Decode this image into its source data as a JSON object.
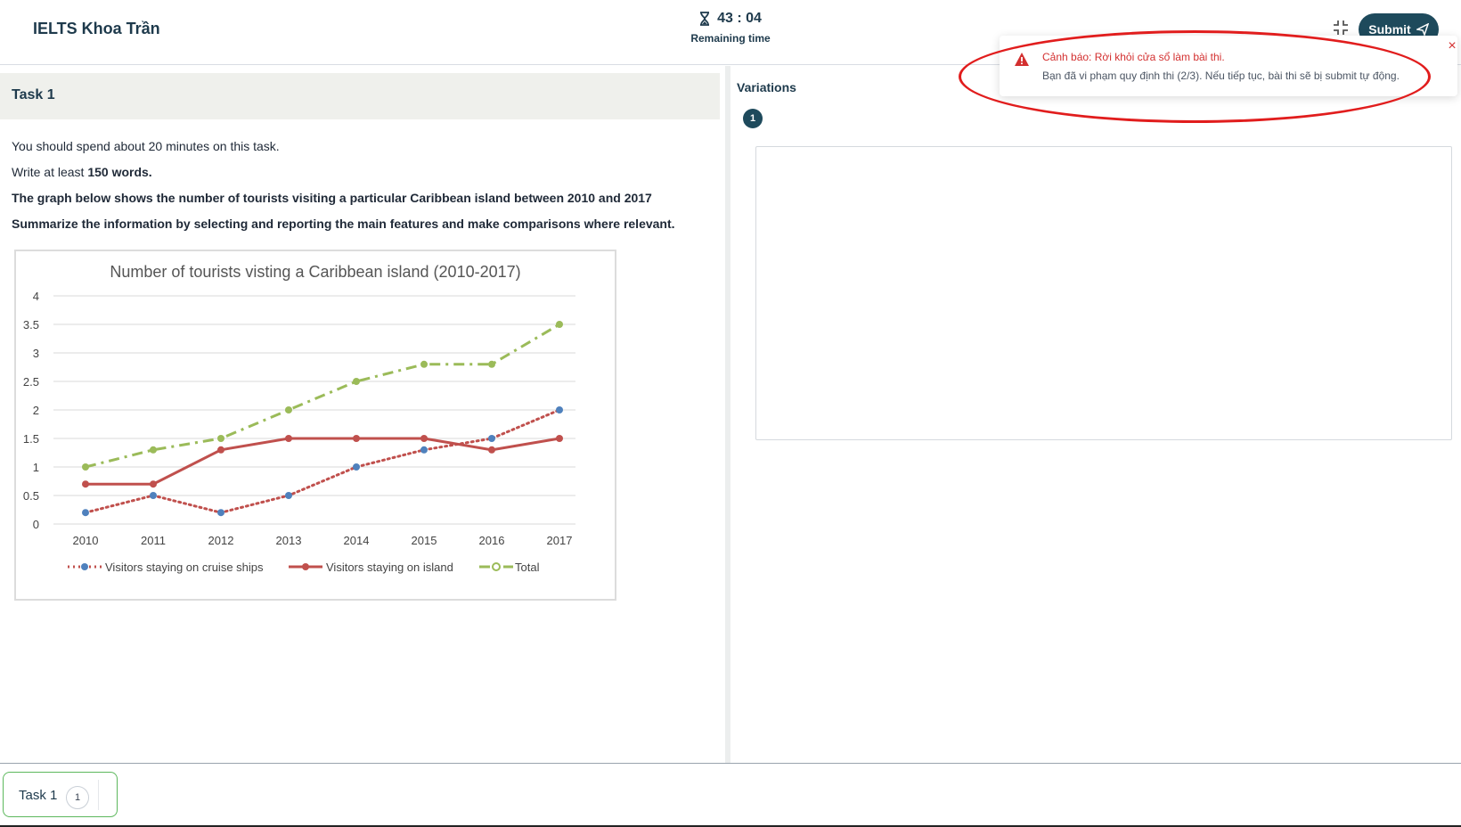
{
  "header": {
    "brand": "IELTS Khoa Trần",
    "timer": "43 : 04",
    "timer_label": "Remaining time",
    "submit_label": "Submit",
    "icons": {
      "timer": "hourglass-icon",
      "collapse": "collapse-icon",
      "submit": "send-icon"
    }
  },
  "task": {
    "title": "Task 1",
    "line1": "You should spend about 20 minutes on this task.",
    "line2_prefix": "Write at least ",
    "line2_bold": "150 words.",
    "line3": "The graph below shows the number of tourists visiting a particular Caribbean island between 2010 and 2017",
    "line4": "Summarize the information by selecting and reporting the main features and make comparisons where relevant."
  },
  "variations": {
    "label": "Variations",
    "current": "1"
  },
  "toast": {
    "title": "Cảnh báo: Rời khỏi cửa sổ làm bài thi.",
    "message": "Bạn đã vi phạm quy định thi (2/3). Nếu tiếp tục, bài thi sẽ bị submit tự động.",
    "close": "×",
    "color": "#d32f2f"
  },
  "footer": {
    "task_label": "Task 1",
    "task_count": "1"
  },
  "chart_data": {
    "type": "line",
    "title": "Number of tourists visting a Caribbean island (2010-2017)",
    "xlabel": "",
    "ylabel": "",
    "categories": [
      "2010",
      "2011",
      "2012",
      "2013",
      "2014",
      "2015",
      "2016",
      "2017"
    ],
    "ylim": [
      0,
      4
    ],
    "yticks": [
      "0",
      "0.5",
      "1",
      "1.5",
      "2",
      "2.5",
      "3",
      "3.5",
      "4"
    ],
    "grid": true,
    "legend": "bottom",
    "series": [
      {
        "name": "Visitors staying on cruise ships",
        "values": [
          0.2,
          0.5,
          0.2,
          0.5,
          1.0,
          1.3,
          1.5,
          2.0
        ],
        "color": "#c0504d",
        "marker": "#4f81bd",
        "style": "dotted"
      },
      {
        "name": "Visitors staying on island",
        "values": [
          0.7,
          0.7,
          1.3,
          1.5,
          1.5,
          1.5,
          1.3,
          1.5
        ],
        "color": "#c0504d",
        "marker": "#c0504d",
        "style": "solid"
      },
      {
        "name": "Total",
        "values": [
          1.0,
          1.3,
          1.5,
          2.0,
          2.5,
          2.8,
          2.8,
          3.5
        ],
        "color": "#9bbb59",
        "marker": "#9bbb59",
        "style": "dashdot"
      }
    ]
  }
}
